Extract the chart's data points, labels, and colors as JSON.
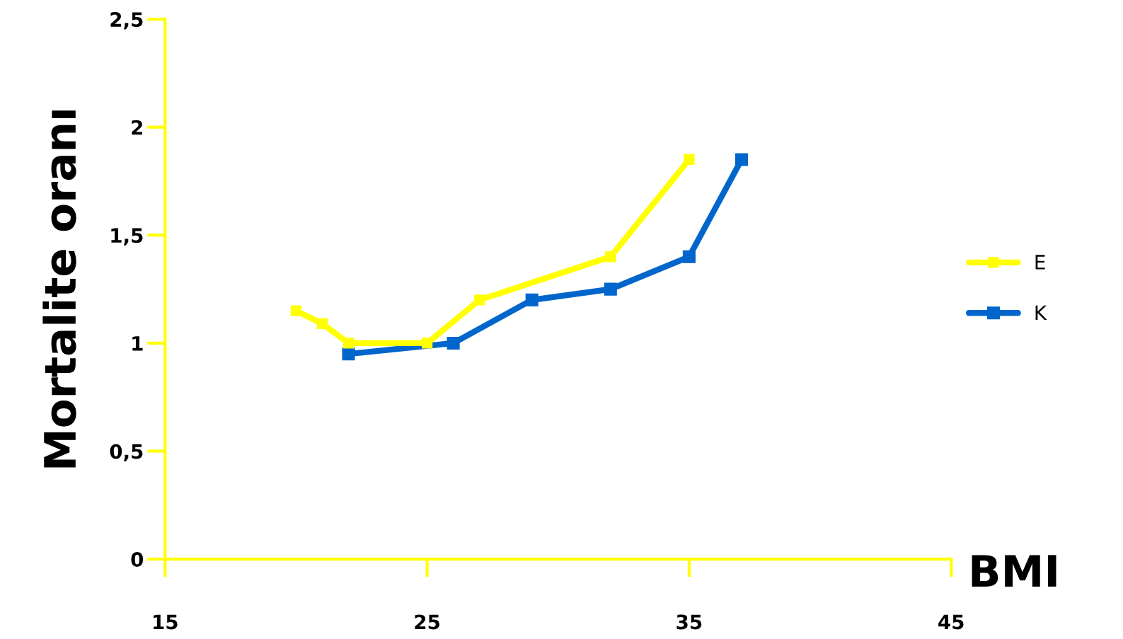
{
  "chart_data": {
    "type": "line",
    "xlabel": "BMI",
    "ylabel": "Mortalite oranı",
    "xlim": [
      15,
      45
    ],
    "xticks": [
      15,
      25,
      35,
      45
    ],
    "ylim": [
      0,
      2.5
    ],
    "yticks": [
      {
        "value": 0,
        "label": "0"
      },
      {
        "value": 0.5,
        "label": "0,5"
      },
      {
        "value": 1,
        "label": "1"
      },
      {
        "value": 1.5,
        "label": "1,5"
      },
      {
        "value": 2,
        "label": "2"
      },
      {
        "value": 2.5,
        "label": "2,5"
      }
    ],
    "series": [
      {
        "name": "E",
        "color": "#ffff00",
        "x": [
          20,
          21,
          22,
          25,
          27,
          32,
          35
        ],
        "values": [
          1.15,
          1.09,
          1.0,
          1.0,
          1.2,
          1.4,
          1.85
        ]
      },
      {
        "name": "K",
        "color": "#0066cc",
        "x": [
          22,
          26,
          29,
          32,
          35,
          37
        ],
        "values": [
          0.95,
          1.0,
          1.2,
          1.25,
          1.4,
          1.85
        ]
      }
    ],
    "marker": "square",
    "line_style": "solid",
    "grid": false,
    "legend": "right"
  }
}
